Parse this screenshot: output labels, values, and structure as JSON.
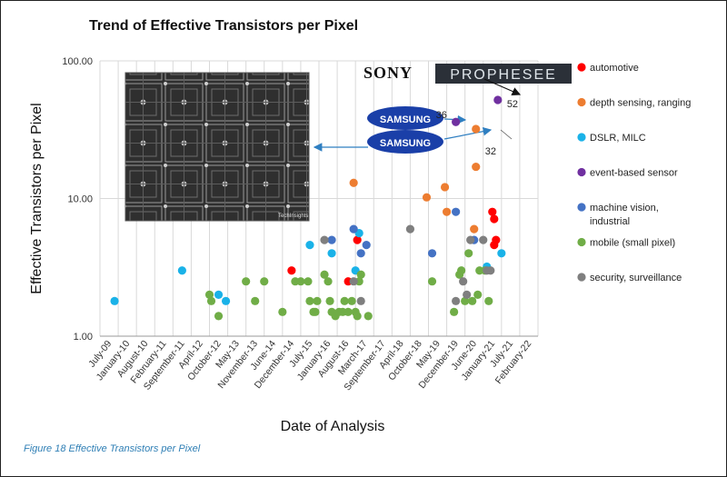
{
  "caption": "Figure 18 Effective Transistors per Pixel",
  "logos": {
    "sony": "SONY",
    "prophesee": "PROPHESEE",
    "samsung": "SAMSUNG"
  },
  "chart_data": {
    "type": "scatter",
    "title": "Trend of Effective Transistors per Pixel",
    "xlabel": "Date of Analysis",
    "ylabel": "Effective Transistors per Pixel",
    "yscale": "log",
    "ylim": [
      1,
      100
    ],
    "yticks": [
      "1.00",
      "10.00",
      "100.00"
    ],
    "xticks": [
      "July-09",
      "January-10",
      "August-10",
      "February-11",
      "September-11",
      "April-12",
      "October-12",
      "May-13",
      "November-13",
      "June-14",
      "December-14",
      "July-15",
      "January-16",
      "August-16",
      "March-17",
      "September-17",
      "April-18",
      "October-18",
      "May-19",
      "December-19",
      "June-20",
      "January-21",
      "July-21",
      "February-22"
    ],
    "grid": "vertical",
    "legend_position": "right",
    "annotations": [
      {
        "text": "36",
        "x": 19.0,
        "y": 36
      },
      {
        "text": "32",
        "x": 20.0,
        "y": 32
      },
      {
        "text": "52",
        "x": 21.3,
        "y": 52
      }
    ],
    "series": [
      {
        "name": "automotive",
        "color": "#ff0000",
        "points": [
          [
            10.0,
            3.0
          ],
          [
            13.1,
            2.5
          ],
          [
            13.6,
            5.0
          ],
          [
            21.0,
            8.0
          ],
          [
            21.1,
            7.1
          ],
          [
            21.1,
            4.6
          ],
          [
            21.2,
            5.0
          ]
        ]
      },
      {
        "name": "depth sensing, ranging",
        "color": "#ed7d31",
        "points": [
          [
            13.4,
            13.0
          ],
          [
            17.4,
            10.2
          ],
          [
            18.4,
            12.1
          ],
          [
            18.5,
            8.0
          ],
          [
            20.0,
            6.0
          ],
          [
            20.1,
            17.0
          ],
          [
            20.1,
            32.0
          ]
        ]
      },
      {
        "name": "DSLR, MILC",
        "color": "#1ab2e8",
        "points": [
          [
            0.3,
            1.8
          ],
          [
            4.0,
            3.0
          ],
          [
            6.0,
            2.0
          ],
          [
            6.4,
            1.8
          ],
          [
            11.0,
            4.6
          ],
          [
            12.2,
            4.0
          ],
          [
            13.5,
            3.0
          ],
          [
            13.7,
            5.6
          ],
          [
            20.7,
            3.2
          ],
          [
            21.5,
            4.0
          ]
        ]
      },
      {
        "name": "event-based sensor",
        "color": "#7030a0",
        "points": [
          [
            19.0,
            36.0
          ],
          [
            21.3,
            52.0
          ]
        ]
      },
      {
        "name": "machine vision, industrial",
        "color": "#4472c4",
        "points": [
          [
            12.2,
            5.0
          ],
          [
            13.4,
            6.0
          ],
          [
            13.8,
            4.0
          ],
          [
            14.1,
            4.6
          ],
          [
            17.7,
            4.0
          ],
          [
            19.0,
            8.0
          ],
          [
            20.0,
            5.0
          ]
        ]
      },
      {
        "name": "mobile (small pixel)",
        "color": "#70ad47",
        "points": [
          [
            5.5,
            2.0
          ],
          [
            5.6,
            1.8
          ],
          [
            6.0,
            1.4
          ],
          [
            7.5,
            2.5
          ],
          [
            8.0,
            1.8
          ],
          [
            8.5,
            2.5
          ],
          [
            9.5,
            1.5
          ],
          [
            10.2,
            2.5
          ],
          [
            10.5,
            2.5
          ],
          [
            10.9,
            2.5
          ],
          [
            11.0,
            1.8
          ],
          [
            11.2,
            1.5
          ],
          [
            11.3,
            1.5
          ],
          [
            11.4,
            1.8
          ],
          [
            11.8,
            2.8
          ],
          [
            12.0,
            2.5
          ],
          [
            12.1,
            1.8
          ],
          [
            12.2,
            1.5
          ],
          [
            12.4,
            1.4
          ],
          [
            12.6,
            1.5
          ],
          [
            12.8,
            1.5
          ],
          [
            12.9,
            1.8
          ],
          [
            13.1,
            1.5
          ],
          [
            13.3,
            1.8
          ],
          [
            13.5,
            1.5
          ],
          [
            13.6,
            1.4
          ],
          [
            13.7,
            2.5
          ],
          [
            13.8,
            2.8
          ],
          [
            14.2,
            1.4
          ],
          [
            17.7,
            2.5
          ],
          [
            18.9,
            1.5
          ],
          [
            19.2,
            2.8
          ],
          [
            19.3,
            3.0
          ],
          [
            19.5,
            1.8
          ],
          [
            19.7,
            4.0
          ],
          [
            19.9,
            1.8
          ],
          [
            20.2,
            2.0
          ],
          [
            20.3,
            3.0
          ],
          [
            20.6,
            3.0
          ],
          [
            20.8,
            1.8
          ]
        ]
      },
      {
        "name": "security, surveillance",
        "color": "#7f7f7f",
        "points": [
          [
            11.8,
            5.0
          ],
          [
            13.4,
            2.5
          ],
          [
            13.8,
            1.8
          ],
          [
            16.5,
            6.0
          ],
          [
            19.0,
            1.8
          ],
          [
            19.4,
            2.5
          ],
          [
            19.6,
            2.0
          ],
          [
            19.8,
            5.0
          ],
          [
            20.5,
            5.0
          ],
          [
            20.7,
            3.0
          ],
          [
            20.9,
            3.0
          ]
        ]
      }
    ]
  }
}
